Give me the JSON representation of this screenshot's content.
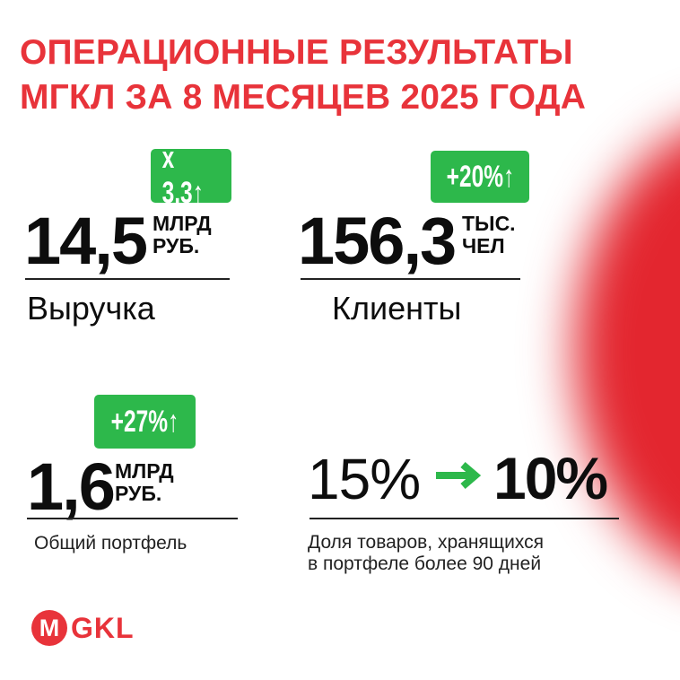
{
  "title": {
    "line1": "ОПЕРАЦИОННЫЕ РЕЗУЛЬТАТЫ",
    "line2": "МГКЛ ЗА 8 МЕСЯЦЕВ 2025 ГОДА"
  },
  "revenue": {
    "badge": "х 3,3↑",
    "value": "14,5",
    "unit1": "МЛРД",
    "unit2": "РУБ.",
    "label": "Выручка"
  },
  "clients": {
    "badge": "+20%↑",
    "value": "156,3",
    "unit1": "ТЫС.",
    "unit2": "ЧЕЛ",
    "label": "Клиенты"
  },
  "portfolio": {
    "badge": "+27%↑",
    "value": "1,6",
    "unit1": "МЛРД",
    "unit2": "РУБ.",
    "label": "Общий портфель"
  },
  "share": {
    "from": "15%",
    "to": "10%",
    "label1": "Доля товаров, хранящихся",
    "label2": "в портфеле более 90 дней"
  },
  "logo": {
    "text": "GKL",
    "mark": "M"
  },
  "colors": {
    "red": "#e8333a",
    "green": "#2db84b"
  }
}
